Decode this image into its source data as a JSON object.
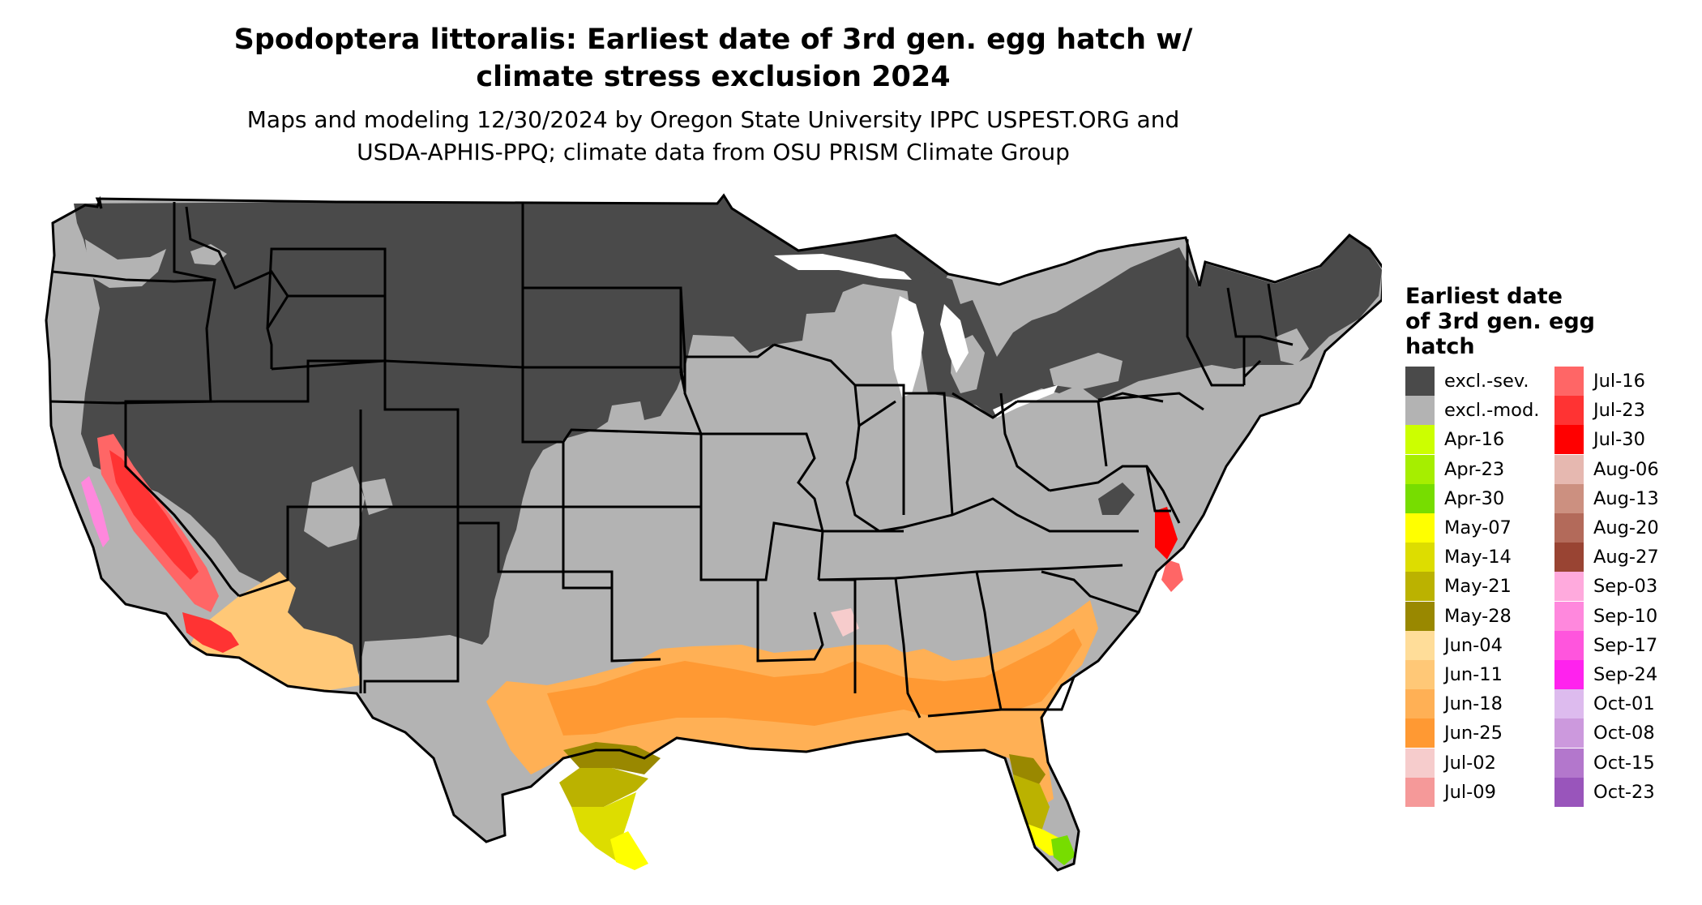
{
  "title_line1": "Spodoptera littoralis: Earliest date of 3rd gen. egg hatch w/",
  "title_line2": "climate stress exclusion 2024",
  "subtitle_line1": "Maps and modeling 12/30/2024 by Oregon State University IPPC USPEST.ORG and",
  "subtitle_line2": "USDA-APHIS-PPQ; climate data from OSU PRISM Climate Group",
  "legend": {
    "title_lines": [
      "Earliest date",
      "of 3rd gen. egg",
      "hatch"
    ],
    "col1": [
      {
        "label": "excl.-sev.",
        "color": "#4a4a4a"
      },
      {
        "label": "excl.-mod.",
        "color": "#b3b3b3"
      },
      {
        "label": "Apr-16",
        "color": "#ccff00"
      },
      {
        "label": "Apr-23",
        "color": "#a6ee00"
      },
      {
        "label": "Apr-30",
        "color": "#77dd00"
      },
      {
        "label": "May-07",
        "color": "#ffff00"
      },
      {
        "label": "May-14",
        "color": "#dddd00"
      },
      {
        "label": "May-21",
        "color": "#bbb200"
      },
      {
        "label": "May-28",
        "color": "#998800"
      },
      {
        "label": "Jun-04",
        "color": "#ffdd99"
      },
      {
        "label": "Jun-11",
        "color": "#ffc877"
      },
      {
        "label": "Jun-18",
        "color": "#ffb055"
      },
      {
        "label": "Jun-25",
        "color": "#ff9933"
      },
      {
        "label": "Jul-02",
        "color": "#f6cccc"
      },
      {
        "label": "Jul-09",
        "color": "#f59999"
      }
    ],
    "col2": [
      {
        "label": "Jul-16",
        "color": "#ff6666"
      },
      {
        "label": "Jul-23",
        "color": "#ff3333"
      },
      {
        "label": "Jul-30",
        "color": "#ff0000"
      },
      {
        "label": "Aug-06",
        "color": "#e6b8b0"
      },
      {
        "label": "Aug-13",
        "color": "#cc9080"
      },
      {
        "label": "Aug-20",
        "color": "#b36a5a"
      },
      {
        "label": "Aug-27",
        "color": "#994433"
      },
      {
        "label": "Sep-03",
        "color": "#ffaadd"
      },
      {
        "label": "Sep-10",
        "color": "#ff88dd"
      },
      {
        "label": "Sep-17",
        "color": "#ff55dd"
      },
      {
        "label": "Sep-24",
        "color": "#ff22ee"
      },
      {
        "label": "Oct-01",
        "color": "#ddbbee"
      },
      {
        "label": "Oct-08",
        "color": "#cc99dd"
      },
      {
        "label": "Oct-15",
        "color": "#b377cc"
      },
      {
        "label": "Oct-23",
        "color": "#9955bb"
      }
    ]
  },
  "map_colors": {
    "severe": "#4a4a4a",
    "moderate": "#b3b3b3",
    "border": "#000000",
    "water": "#ffffff"
  }
}
